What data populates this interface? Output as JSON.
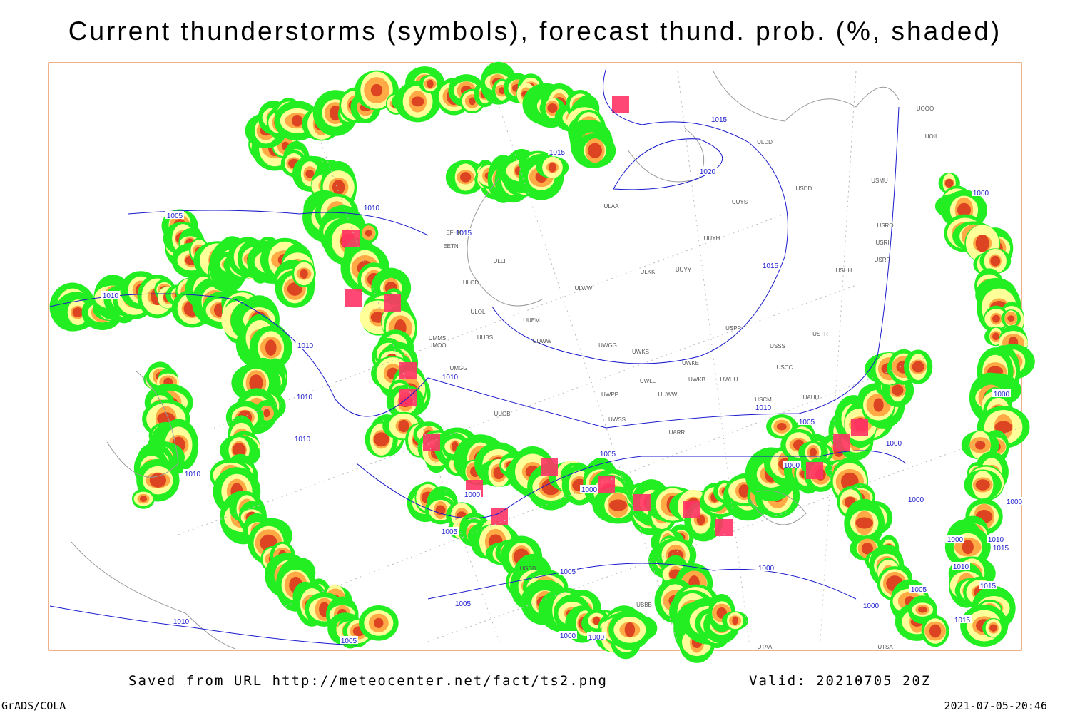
{
  "title": "Current thunderstorms (symbols), forecast thund. prob. (%, shaded)",
  "isobar_labels": [
    "1015",
    "1015",
    "1020",
    "1010",
    "1005",
    "1015",
    "1015",
    "1010",
    "1010",
    "1010",
    "1010",
    "1010",
    "1010",
    "1005",
    "1005",
    "1000",
    "1000",
    "1000",
    "1000",
    "1000",
    "1000",
    "1010",
    "1000",
    "1005",
    "1005",
    "1000",
    "1000",
    "1010",
    "1015",
    "1010",
    "1005",
    "1015",
    "1000",
    "1015",
    "1005",
    "1010",
    "1005",
    "1000",
    "1000",
    "1000"
  ],
  "station_labels": [
    "UOOO",
    "UOII",
    "ULDD",
    "USDD",
    "UUYS",
    "USMU",
    "ULAA",
    "USRO",
    "USRI",
    "USRR",
    "UUYH",
    "UUYY",
    "ULKK",
    "USHH",
    "ULWW",
    "ULOD",
    "ULOL",
    "UUEM",
    "UMMS",
    "UUBS",
    "UMOO",
    "UUWW",
    "UWGG",
    "UWKS",
    "USPP",
    "USSS",
    "USTR",
    "UWKE",
    "USCC",
    "UWKB",
    "UWUU",
    "UWLL",
    "UUWW",
    "UWPP",
    "USCM",
    "UAUU",
    "UWSS",
    "UARR",
    "UMGG",
    "UUOB",
    "ULLI",
    "EETN",
    "EFHK",
    "UTAA",
    "UBBB",
    "UGSB",
    "UTSA"
  ],
  "footer": {
    "source": "Saved from URL http://meteocenter.net/fact/ts2.png",
    "valid": "Valid: 20210705 20Z",
    "software": "GrADS/COLA",
    "timestamp": "2021-07-05-20:46"
  }
}
